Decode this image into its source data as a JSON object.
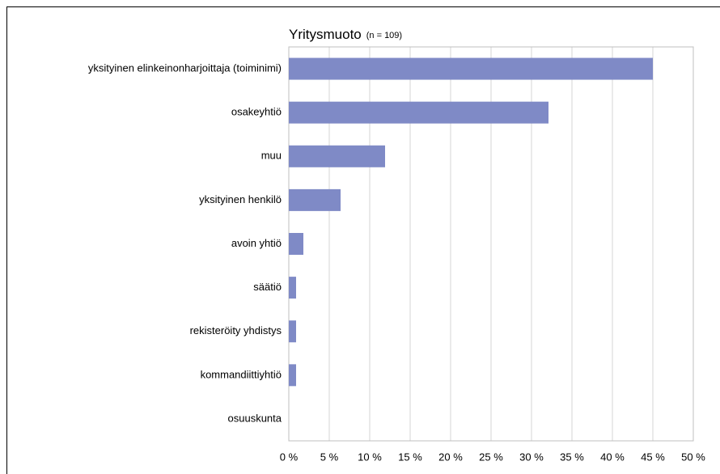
{
  "chart_data": {
    "type": "barh",
    "title": "Yritysmuoto",
    "subtitle": "(n = 109)",
    "categories": [
      "yksityinen elinkeinonharjoittaja (toiminimi)",
      "osakeyhtiö",
      "muu",
      "yksityinen henkilö",
      "avoin yhtiö",
      "säätiö",
      "rekisteröity yhdistys",
      "kommandiittiyhtiö",
      "osuuskunta"
    ],
    "values": [
      45,
      32.1,
      11.9,
      6.4,
      1.8,
      0.9,
      0.9,
      0.9,
      0
    ],
    "color": "#7f8ac6",
    "xlim": [
      0,
      50
    ],
    "xticks": [
      {
        "value": 0,
        "label": "0 %"
      },
      {
        "value": 5,
        "label": "5 %"
      },
      {
        "value": 10,
        "label": "10 %"
      },
      {
        "value": 15,
        "label": "15 %"
      },
      {
        "value": 20,
        "label": "20 %"
      },
      {
        "value": 25,
        "label": "25 %"
      },
      {
        "value": 30,
        "label": "30 %"
      },
      {
        "value": 35,
        "label": "35 %"
      },
      {
        "value": 40,
        "label": "40 %"
      },
      {
        "value": 45,
        "label": "45 %"
      },
      {
        "value": 50,
        "label": "50 %"
      }
    ],
    "grid": true
  }
}
